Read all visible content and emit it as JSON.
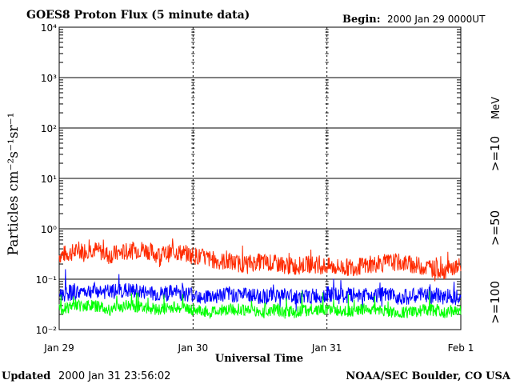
{
  "header": {
    "title": "GOES8 Proton Flux (5 minute data)",
    "begin_label": "Begin:",
    "begin_value": "2000 Jan 29 0000UT"
  },
  "footer": {
    "updated_label": "Updated",
    "updated_value": "2000 Jan 31 23:56:02",
    "source": "NOAA/SEC Boulder, CO USA"
  },
  "chart_data": {
    "type": "line",
    "title": "GOES8 Proton Flux (5 minute data)",
    "xlabel": "Universal Time",
    "ylabel": "Particles cm⁻²s⁻¹sr⁻¹",
    "yscale": "log",
    "ylim": [
      0.01,
      10000
    ],
    "xlim_days": [
      0,
      3
    ],
    "x_ticks": [
      "Jan 29",
      "Jan 30",
      "Jan 31",
      "Feb 1"
    ],
    "y_ticks": [
      "10⁻²",
      "10⁻¹",
      "10⁰",
      "10¹",
      "10²",
      "10³",
      "10⁴"
    ],
    "grid": true,
    "unit_label": "MeV",
    "series": [
      {
        "name": ">=10",
        "color": "#ff2a00",
        "samples_per_day": 8,
        "values": [
          0.3,
          0.35,
          0.4,
          0.3,
          0.35,
          0.4,
          0.3,
          0.35,
          0.3,
          0.25,
          0.22,
          0.2,
          0.22,
          0.2,
          0.18,
          0.2,
          0.18,
          0.17,
          0.18,
          0.2,
          0.22,
          0.2,
          0.17,
          0.15,
          0.18
        ]
      },
      {
        "name": ">=50",
        "color": "#0000ff",
        "samples_per_day": 8,
        "values": [
          0.05,
          0.055,
          0.06,
          0.055,
          0.06,
          0.055,
          0.05,
          0.055,
          0.05,
          0.045,
          0.05,
          0.05,
          0.045,
          0.05,
          0.045,
          0.045,
          0.05,
          0.045,
          0.05,
          0.05,
          0.045,
          0.045,
          0.05,
          0.045,
          0.05
        ]
      },
      {
        "name": ">=100",
        "color": "#00ff00",
        "samples_per_day": 8,
        "values": [
          0.025,
          0.03,
          0.03,
          0.025,
          0.03,
          0.028,
          0.025,
          0.028,
          0.025,
          0.022,
          0.025,
          0.025,
          0.022,
          0.025,
          0.022,
          0.025,
          0.025,
          0.022,
          0.025,
          0.025,
          0.022,
          0.022,
          0.025,
          0.022,
          0.025
        ]
      }
    ]
  }
}
